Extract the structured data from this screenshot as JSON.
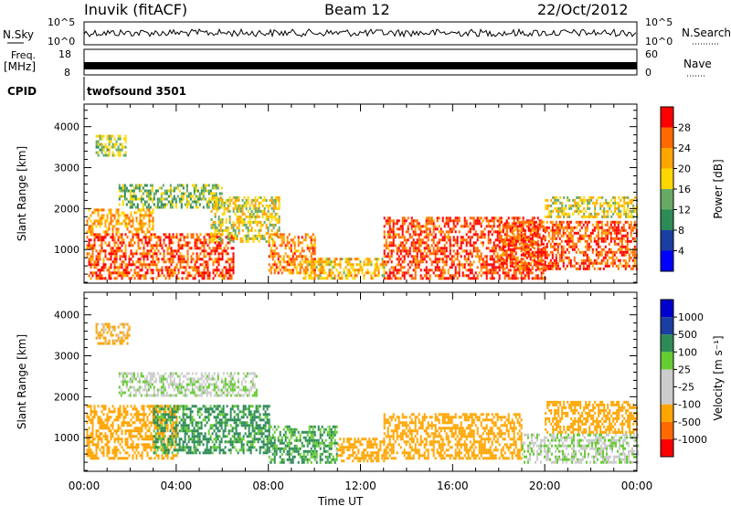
{
  "header": {
    "station": "Inuvik (fitACF)",
    "beam": "Beam 12",
    "date": "22/Oct/2012"
  },
  "side_labels": {
    "nsky": "N.Sky",
    "nsearch": "N.Search",
    "freq": "Freq.",
    "freq_unit": "[MHz]",
    "nave": "Nave",
    "cpid": "CPID",
    "cpid_value": "twofsound 3501"
  },
  "noise_ticks": {
    "left_top": "10^5",
    "left_bottom": "10^0",
    "right_top": "10^5",
    "right_bottom": "10^0"
  },
  "freq_ticks": {
    "left": [
      "18",
      "8"
    ],
    "right": [
      "60",
      "0"
    ]
  },
  "colors": {
    "power": [
      "#0000ff",
      "#1b3fa0",
      "#2e8b57",
      "#66aa66",
      "#ffd700",
      "#ffa500",
      "#ff6a00",
      "#ff0000"
    ],
    "velocity": [
      "#ff0000",
      "#ff6a00",
      "#ffa500",
      "#cccccc",
      "#cccccc",
      "#66cc33",
      "#2e8b57",
      "#1b3fa0",
      "#0000cc"
    ]
  },
  "chart_data": [
    {
      "type": "heatmap",
      "title": "",
      "xlabel": "",
      "ylabel": "Slant Range [km]",
      "x_ticks": [
        "00:00",
        "04:00",
        "08:00",
        "12:00",
        "16:00",
        "20:00",
        "00:00"
      ],
      "xlim": [
        0,
        24
      ],
      "y_ticks": [
        1000,
        2000,
        3000,
        4000
      ],
      "ylim": [
        180,
        4550
      ],
      "colorbar": {
        "label": "Power [dB]",
        "ticks": [
          4,
          8,
          12,
          16,
          20,
          24,
          28
        ],
        "range": [
          0,
          32
        ]
      },
      "regions": [
        {
          "x": [
            0.1,
            6.5
          ],
          "y": [
            300,
            1400
          ],
          "value": 27
        },
        {
          "x": [
            0.1,
            3.0
          ],
          "y": [
            1400,
            2000
          ],
          "value": 22
        },
        {
          "x": [
            1.5,
            6.0
          ],
          "y": [
            2000,
            2600
          ],
          "value": 14
        },
        {
          "x": [
            5.5,
            8.5
          ],
          "y": [
            1200,
            2300
          ],
          "value": 18
        },
        {
          "x": [
            8.0,
            10.0
          ],
          "y": [
            400,
            1400
          ],
          "value": 24
        },
        {
          "x": [
            9.5,
            13.0
          ],
          "y": [
            300,
            800
          ],
          "value": 20
        },
        {
          "x": [
            13.0,
            20.0
          ],
          "y": [
            300,
            1800
          ],
          "value": 28
        },
        {
          "x": [
            18.0,
            24.0
          ],
          "y": [
            500,
            1700
          ],
          "value": 27
        },
        {
          "x": [
            20.0,
            24.0
          ],
          "y": [
            1800,
            2300
          ],
          "value": 18
        },
        {
          "x": [
            0.5,
            1.8
          ],
          "y": [
            3300,
            3800
          ],
          "value": 16
        }
      ]
    },
    {
      "type": "heatmap",
      "title": "",
      "xlabel": "Time UT",
      "ylabel": "Slant Range [km]",
      "x_ticks": [
        "00:00",
        "04:00",
        "08:00",
        "12:00",
        "16:00",
        "20:00",
        "00:00"
      ],
      "xlim": [
        0,
        24
      ],
      "y_ticks": [
        1000,
        2000,
        3000,
        4000
      ],
      "ylim": [
        180,
        4550
      ],
      "colorbar": {
        "label": "Velocity [m s⁻¹]",
        "ticks": [
          "1000",
          "500",
          "100",
          "25",
          "-25",
          "-100",
          "-500",
          "-1000"
        ]
      },
      "regions": [
        {
          "x": [
            0.1,
            4.0
          ],
          "y": [
            500,
            1800
          ],
          "value": -200
        },
        {
          "x": [
            3.0,
            8.0
          ],
          "y": [
            600,
            1800
          ],
          "value": 150
        },
        {
          "x": [
            1.5,
            7.5
          ],
          "y": [
            2000,
            2600
          ],
          "value": 0
        },
        {
          "x": [
            8.0,
            11.0
          ],
          "y": [
            400,
            1300
          ],
          "value": 120
        },
        {
          "x": [
            11.0,
            13.0
          ],
          "y": [
            400,
            1000
          ],
          "value": -300
        },
        {
          "x": [
            13.0,
            19.0
          ],
          "y": [
            500,
            1600
          ],
          "value": -250
        },
        {
          "x": [
            19.0,
            24.0
          ],
          "y": [
            400,
            1100
          ],
          "value": 0
        },
        {
          "x": [
            20.0,
            24.0
          ],
          "y": [
            1100,
            1900
          ],
          "value": -300
        },
        {
          "x": [
            0.5,
            2.0
          ],
          "y": [
            3300,
            3800
          ],
          "value": -150
        }
      ]
    }
  ]
}
